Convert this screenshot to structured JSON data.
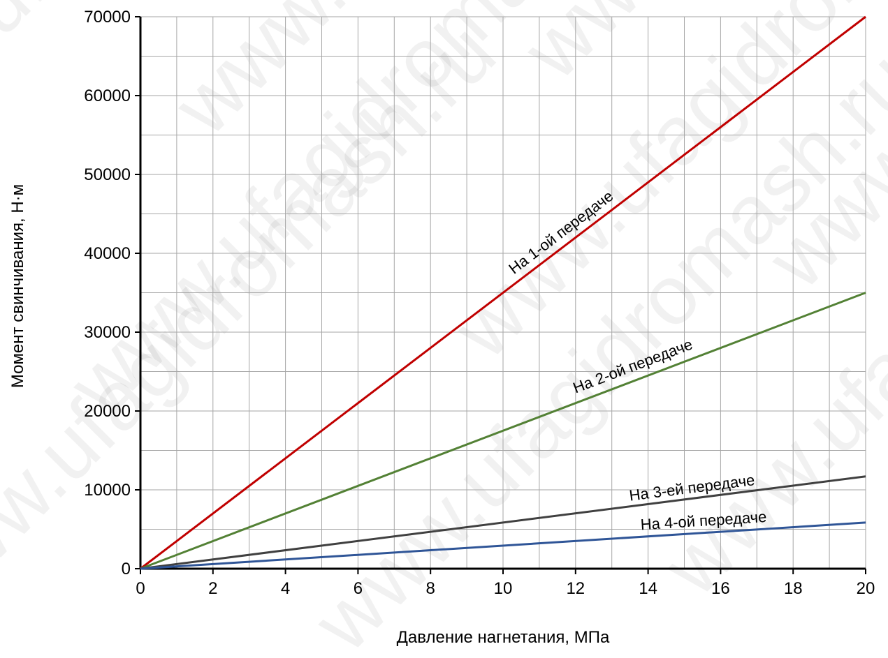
{
  "chart_data": {
    "type": "line",
    "xlabel": "Давление нагнетания, МПа",
    "ylabel": "Момент свинчивания, Н·м",
    "xlim": [
      0,
      20
    ],
    "ylim": [
      0,
      70000
    ],
    "x_ticks": [
      0,
      2,
      4,
      6,
      8,
      10,
      12,
      14,
      16,
      18,
      20
    ],
    "y_ticks": [
      0,
      10000,
      20000,
      30000,
      40000,
      50000,
      60000,
      70000
    ],
    "grid": true,
    "series": [
      {
        "name": "На 1-ой передаче",
        "x": [
          0,
          20
        ],
        "y": [
          0,
          70000
        ],
        "color": "#c00000"
      },
      {
        "name": "На 2-ой передаче",
        "x": [
          0,
          20
        ],
        "y": [
          0,
          35000
        ],
        "color": "#538135"
      },
      {
        "name": "На 3-ей передаче",
        "x": [
          0,
          20
        ],
        "y": [
          0,
          11700
        ],
        "color": "#404040"
      },
      {
        "name": "На 4-ой передаче",
        "x": [
          0,
          20
        ],
        "y": [
          0,
          5850
        ],
        "color": "#2f5597"
      }
    ]
  },
  "watermark": "www.ufagidromash.ru"
}
